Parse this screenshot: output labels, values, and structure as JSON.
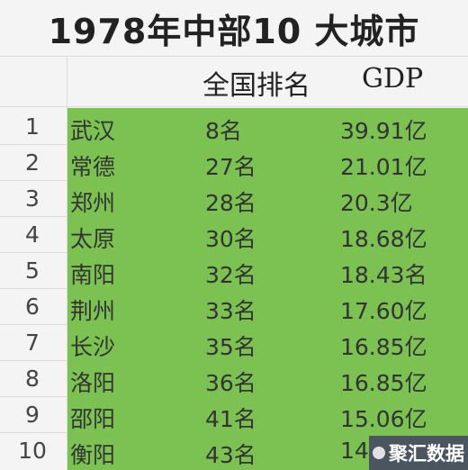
{
  "title": "1978年中部10 大城市",
  "headers": {
    "rank": "全国排名",
    "gdp": "GDP"
  },
  "rows": [
    {
      "idx": "1",
      "city": "武汉",
      "rank": "8名",
      "gdp": "39.91亿"
    },
    {
      "idx": "2",
      "city": "常德",
      "rank": "27名",
      "gdp": "21.01亿"
    },
    {
      "idx": "3",
      "city": "郑州",
      "rank": "28名",
      "gdp": "20.3亿"
    },
    {
      "idx": "4",
      "city": "太原",
      "rank": "30名",
      "gdp": "18.68亿"
    },
    {
      "idx": "5",
      "city": "南阳",
      "rank": "32名",
      "gdp": "18.43名"
    },
    {
      "idx": "6",
      "city": "荆州",
      "rank": "33名",
      "gdp": "17.60亿"
    },
    {
      "idx": "7",
      "city": "长沙",
      "rank": "35名",
      "gdp": "16.85亿"
    },
    {
      "idx": "8",
      "city": "洛阳",
      "rank": "36名",
      "gdp": "16.85亿"
    },
    {
      "idx": "9",
      "city": "邵阳",
      "rank": "41名",
      "gdp": "15.06亿"
    },
    {
      "idx": "10",
      "city": "衡阳",
      "rank": "43名",
      "gdp": "14"
    }
  ],
  "watermark": "聚汇数据",
  "colors": {
    "highlight": "#7cc253"
  }
}
